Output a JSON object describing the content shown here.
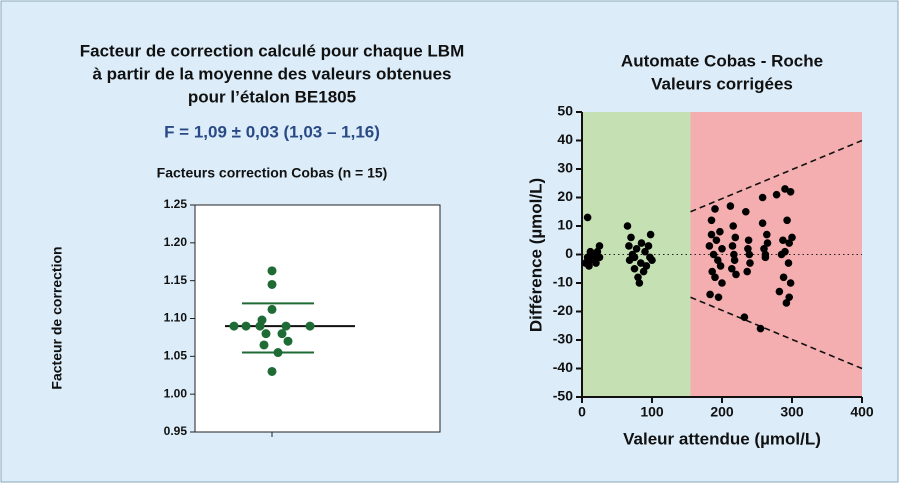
{
  "chart_data": [
    {
      "type": "dotplot",
      "title": [
        "Facteur de correction calculé pour chaque LBM",
        "à partir de la moyenne des valeurs obtenues",
        "pour l’étalon BE1805"
      ],
      "annotation": "F = 1,09 ± 0,03 (1,03 – 1,16)",
      "subtitle": "Facteurs correction Cobas (n = 15)",
      "y_label": "Facteur de correction",
      "color": "#1e6b35",
      "values": [
        1.163,
        1.145,
        1.112,
        1.098,
        1.09,
        1.09,
        1.09,
        1.09,
        1.09,
        1.08,
        1.08,
        1.07,
        1.065,
        1.055,
        1.03
      ],
      "mean": 1.09,
      "sd_lines": [
        1.055,
        1.12
      ],
      "ylim": [
        0.95,
        1.25
      ],
      "yticks": [
        {
          "value": 0.95,
          "label": "0.95"
        },
        {
          "value": 1.0,
          "label": "1.00"
        },
        {
          "value": 1.05,
          "label": "1.05"
        },
        {
          "value": 1.1,
          "label": "1.10"
        },
        {
          "value": 1.15,
          "label": "1.15"
        },
        {
          "value": 1.2,
          "label": "1.20"
        },
        {
          "value": 1.25,
          "label": "1.25"
        }
      ]
    },
    {
      "type": "scatter",
      "title": [
        "Automate Cobas - Roche",
        "Valeurs corrigées"
      ],
      "x_label": "Valeur attendue (µmol/L)",
      "y_label": "Différence (µmol/L)",
      "color": "#000000",
      "x": [
        8,
        5,
        8,
        10,
        12,
        15,
        18,
        20,
        22,
        25,
        25,
        12,
        65,
        67,
        68,
        70,
        72,
        75,
        78,
        80,
        82,
        84,
        85,
        88,
        90,
        92,
        95,
        97,
        98,
        100,
        75,
        182,
        183,
        185,
        186,
        188,
        190,
        190,
        192,
        194,
        195,
        197,
        198,
        200,
        200,
        185,
        212,
        214,
        215,
        217,
        218,
        219,
        220,
        216,
        232,
        234,
        236,
        237,
        238,
        240,
        239,
        255,
        258,
        258,
        260,
        262,
        264,
        265,
        262,
        278,
        282,
        285,
        287,
        288,
        290,
        292,
        293,
        295,
        296,
        298,
        298,
        300,
        296,
        290
      ],
      "y": [
        13,
        -3,
        -1,
        -4,
        -2,
        0,
        -1,
        -3,
        1,
        3,
        -1,
        1,
        10,
        3,
        -2,
        6,
        0,
        -5,
        2,
        -8,
        -10,
        -3,
        4,
        -6,
        1,
        -4,
        3,
        -1,
        7,
        -2,
        -1,
        3,
        -14,
        12,
        -6,
        0,
        16,
        -8,
        5,
        -2,
        -15,
        8,
        -4,
        2,
        -10,
        7,
        17,
        -5,
        3,
        0,
        -2,
        6,
        -7,
        10,
        -22,
        15,
        -6,
        2,
        5,
        -3,
        0,
        -26,
        20,
        11,
        2,
        -1,
        7,
        4,
        0,
        21,
        -13,
        0,
        5,
        -8,
        23,
        -17,
        12,
        -3,
        4,
        22,
        -10,
        6,
        -15,
        1
      ],
      "regions": [
        {
          "xlim": [
            0,
            155
          ],
          "color": "#c5e1b4"
        },
        {
          "xlim": [
            155,
            400
          ],
          "color": "#f4aeb0"
        }
      ],
      "limit_lines": [
        {
          "x": [
            155,
            400
          ],
          "y": [
            15,
            40
          ]
        },
        {
          "x": [
            155,
            400
          ],
          "y": [
            -15,
            -40
          ]
        }
      ],
      "reference_line": 0,
      "xlim": [
        0,
        400
      ],
      "xticks": [
        0,
        100,
        200,
        300,
        400
      ],
      "ylim": [
        -50,
        50
      ],
      "yticks": [
        -50,
        -40,
        -30,
        -20,
        -10,
        0,
        10,
        20,
        30,
        40,
        50
      ]
    }
  ]
}
